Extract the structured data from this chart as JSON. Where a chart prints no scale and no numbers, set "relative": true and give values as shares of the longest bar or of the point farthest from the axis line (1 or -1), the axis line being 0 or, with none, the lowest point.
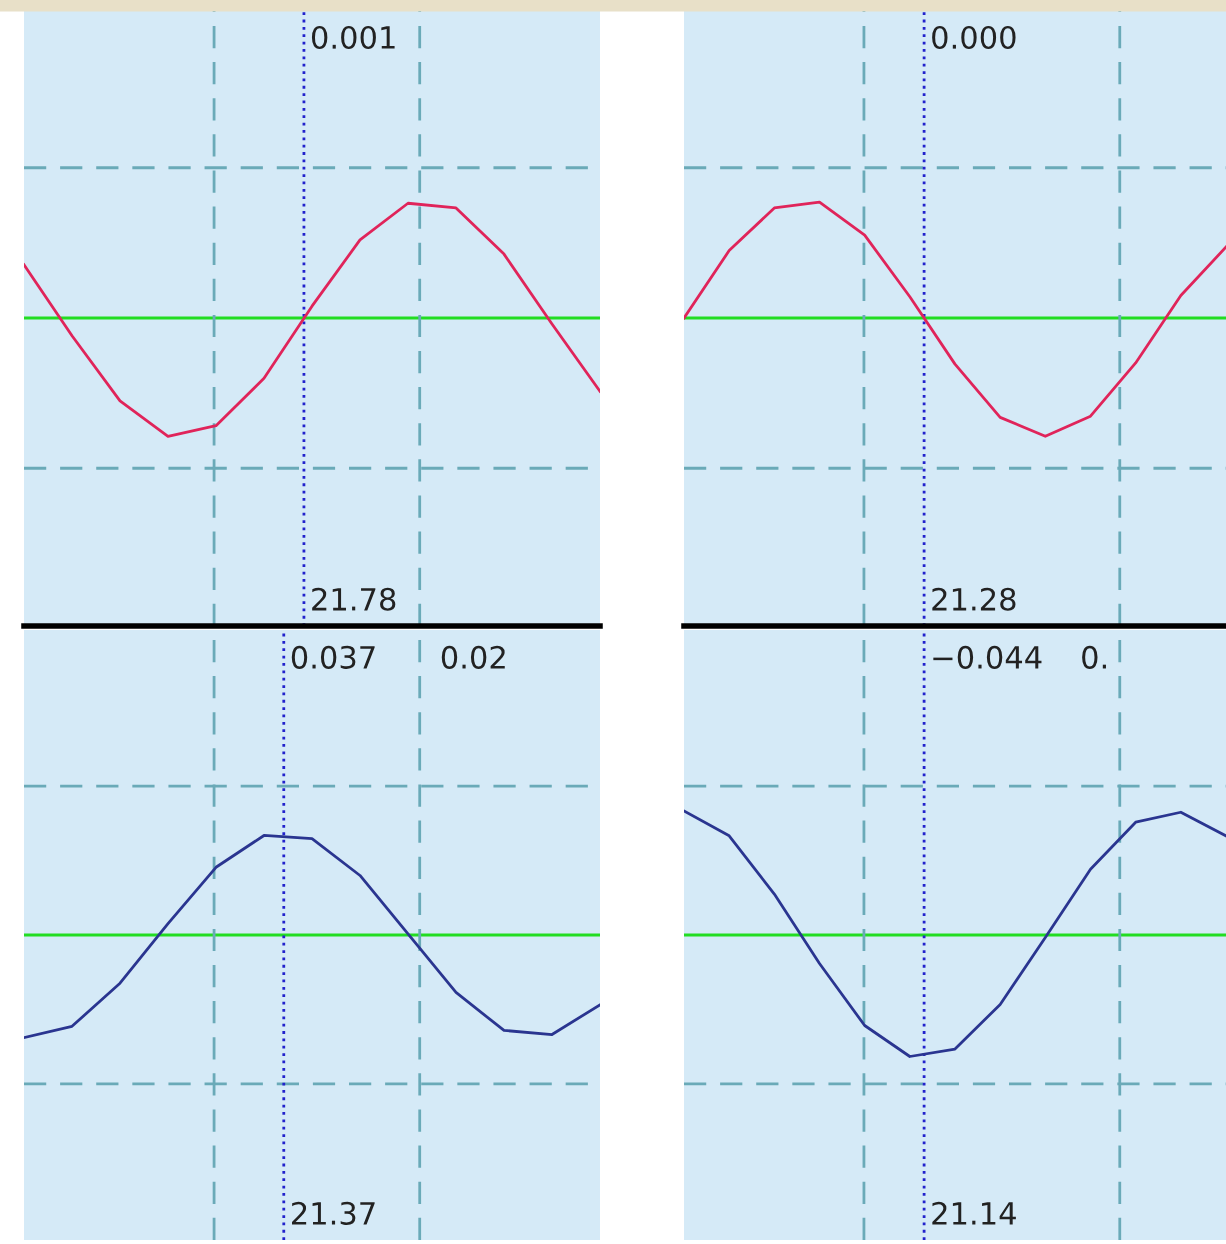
{
  "chart_data": [
    {
      "type": "line",
      "relative": true,
      "categories": [
        null,
        null,
        null,
        null,
        null,
        null,
        null,
        null,
        null,
        null,
        null,
        null,
        null
      ],
      "series": [
        {
          "color": "#e0245a",
          "values": [
            0.45,
            -0.15,
            -0.7,
            -1,
            -0.91,
            -0.51,
            0.1,
            0.66,
            0.97,
            0.93,
            0.54,
            -0.05,
            -0.62
          ]
        }
      ],
      "ref_lines": [
        {
          "axis": "y",
          "value": 0,
          "color": "#22dd22",
          "line_style": "solid"
        },
        {
          "axis": "y",
          "value": 1.27,
          "color": "#6aaab8",
          "line_style": "dashed"
        },
        {
          "axis": "y",
          "value": -1.27,
          "color": "#6aaab8",
          "line_style": "dashed"
        }
      ],
      "annotations": [
        "0.001",
        "21.78"
      ]
    },
    {
      "type": "line",
      "relative": true,
      "categories": [
        null,
        null,
        null,
        null,
        null,
        null,
        null,
        null,
        null,
        null,
        null,
        null,
        null
      ],
      "series": [
        {
          "color": "#e0245a",
          "values": [
            0.0,
            0.57,
            0.93,
            0.98,
            0.7,
            0.18,
            -0.39,
            -0.84,
            -1.0,
            -0.83,
            -0.38,
            0.19,
            0.6
          ]
        }
      ],
      "ref_lines": [
        {
          "axis": "y",
          "value": 0,
          "color": "#22dd22",
          "line_style": "solid"
        },
        {
          "axis": "y",
          "value": 1.27,
          "color": "#6aaab8",
          "line_style": "dashed"
        },
        {
          "axis": "y",
          "value": -1.27,
          "color": "#6aaab8",
          "line_style": "dashed"
        }
      ],
      "annotations": [
        "0.000",
        "21.28"
      ]
    },
    {
      "type": "line",
      "relative": true,
      "categories": [
        null,
        null,
        null,
        null,
        null,
        null,
        null,
        null,
        null,
        null,
        null,
        null,
        null
      ],
      "series": [
        {
          "color": "#2a3590",
          "values": [
            -1,
            -0.89,
            -0.47,
            0.11,
            0.66,
            0.97,
            0.94,
            0.58,
            0.01,
            -0.56,
            -0.93,
            -0.97,
            -0.68
          ]
        }
      ],
      "ref_lines": [
        {
          "axis": "y",
          "value": 0,
          "color": "#22dd22",
          "line_style": "solid"
        },
        {
          "axis": "y",
          "value": 1.45,
          "color": "#6aaab8",
          "line_style": "dashed"
        },
        {
          "axis": "y",
          "value": -1.45,
          "color": "#6aaab8",
          "line_style": "dashed"
        }
      ],
      "annotations": [
        "0.037",
        "0.02",
        "21.37"
      ]
    },
    {
      "type": "line",
      "relative": true,
      "categories": [
        null,
        null,
        null,
        null,
        null,
        null,
        null,
        null,
        null,
        null,
        null,
        null,
        null
      ],
      "series": [
        {
          "color": "#2a3590",
          "values": [
            1.0,
            0.8,
            0.33,
            -0.23,
            -0.73,
            -0.98,
            -0.92,
            -0.56,
            -0.02,
            0.53,
            0.91,
            0.99,
            0.8
          ]
        }
      ],
      "ref_lines": [
        {
          "axis": "y",
          "value": 0,
          "color": "#22dd22",
          "line_style": "solid"
        },
        {
          "axis": "y",
          "value": 1.2,
          "color": "#6aaab8",
          "line_style": "dashed"
        },
        {
          "axis": "y",
          "value": -1.2,
          "color": "#6aaab8",
          "line_style": "dashed"
        }
      ],
      "annotations": [
        "−0.044",
        "0.",
        "21.14"
      ]
    }
  ]
}
